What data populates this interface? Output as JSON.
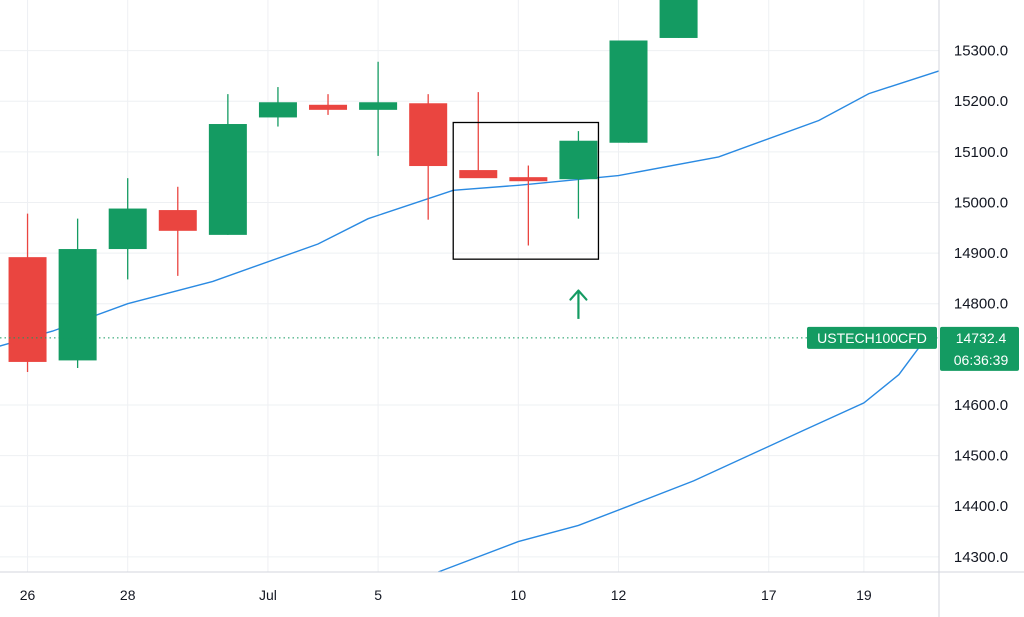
{
  "chart_data": {
    "type": "candlestick",
    "symbol": "USTECH100CFD",
    "last_price": "14732.4",
    "countdown": "06:36:39",
    "ylim": [
      14270,
      15400
    ],
    "yticks": [
      "15300.0",
      "15200.0",
      "15100.0",
      "15000.0",
      "14900.0",
      "14800.0",
      "14600.0",
      "14500.0",
      "14400.0",
      "14300.0"
    ],
    "ytick_values": [
      15300,
      15200,
      15100,
      15000,
      14900,
      14800,
      14600,
      14500,
      14400,
      14300
    ],
    "xticks": [
      {
        "label": "26",
        "t": 0
      },
      {
        "label": "28",
        "t": 2
      },
      {
        "label": "Jul",
        "t": 4.8
      },
      {
        "label": "5",
        "t": 7
      },
      {
        "label": "10",
        "t": 9.8
      },
      {
        "label": "12",
        "t": 11.8
      },
      {
        "label": "17",
        "t": 14.8
      },
      {
        "label": "19",
        "t": 16.7
      }
    ],
    "x_range": [
      -0.55,
      18.2
    ],
    "candles": [
      {
        "t": 0,
        "open": 14892,
        "high": 14978,
        "low": 14665,
        "close": 14685
      },
      {
        "t": 1,
        "open": 14688,
        "high": 14968,
        "low": 14673,
        "close": 14908
      },
      {
        "t": 2,
        "open": 14908,
        "high": 15048,
        "low": 14848,
        "close": 14988
      },
      {
        "t": 3,
        "open": 14985,
        "high": 15031,
        "low": 14855,
        "close": 14944
      },
      {
        "t": 4,
        "open": 14936,
        "high": 15214,
        "low": 14936,
        "close": 15155
      },
      {
        "t": 5,
        "open": 15168,
        "high": 15228,
        "low": 15150,
        "close": 15198
      },
      {
        "t": 6,
        "open": 15193,
        "high": 15214,
        "low": 15173,
        "close": 15183
      },
      {
        "t": 7,
        "open": 15183,
        "high": 15278,
        "low": 15092,
        "close": 15198
      },
      {
        "t": 8,
        "open": 15196,
        "high": 15214,
        "low": 14966,
        "close": 15072
      },
      {
        "t": 9,
        "open": 15064,
        "high": 15218,
        "low": 15049,
        "close": 15048
      },
      {
        "t": 10,
        "open": 15050,
        "high": 15073,
        "low": 14915,
        "close": 15042
      },
      {
        "t": 11,
        "open": 15046,
        "high": 15141,
        "low": 14968,
        "close": 15122
      },
      {
        "t": 12,
        "open": 15118,
        "high": 15320,
        "low": 15118,
        "close": 15320
      },
      {
        "t": 13,
        "open": 15325,
        "high": 15400,
        "low": 15325,
        "close": 15400
      }
    ],
    "ma_fast": [
      [
        -0.6,
        14715
      ],
      [
        0.5,
        14746
      ],
      [
        2,
        14800
      ],
      [
        3.7,
        14844
      ],
      [
        5.8,
        14918
      ],
      [
        6.8,
        14968
      ],
      [
        8.5,
        15024
      ],
      [
        9.8,
        15034
      ],
      [
        11.8,
        15053
      ],
      [
        13.8,
        15090
      ],
      [
        15.8,
        15162
      ],
      [
        16.8,
        15215
      ],
      [
        18.2,
        15260
      ]
    ],
    "ma_slow": [
      [
        8.2,
        14270
      ],
      [
        9.8,
        14330
      ],
      [
        11,
        14362
      ],
      [
        12,
        14400
      ],
      [
        13.3,
        14450
      ],
      [
        15.5,
        14550
      ],
      [
        16.7,
        14604
      ],
      [
        17.4,
        14660
      ],
      [
        18,
        14740
      ]
    ],
    "highlight_box": {
      "t0": 8.5,
      "t1": 11.4,
      "p0": 14888,
      "p1": 15158
    },
    "arrow": {
      "t": 11,
      "p0": 14770,
      "p1": 14826
    },
    "colors": {
      "up": "#149b62",
      "down": "#ea4540",
      "ma": "#2a8ae2",
      "grid": "#eef0f3",
      "axis_line": "#d3d6dd",
      "price_line": "#149b62",
      "box": "#000000"
    }
  }
}
